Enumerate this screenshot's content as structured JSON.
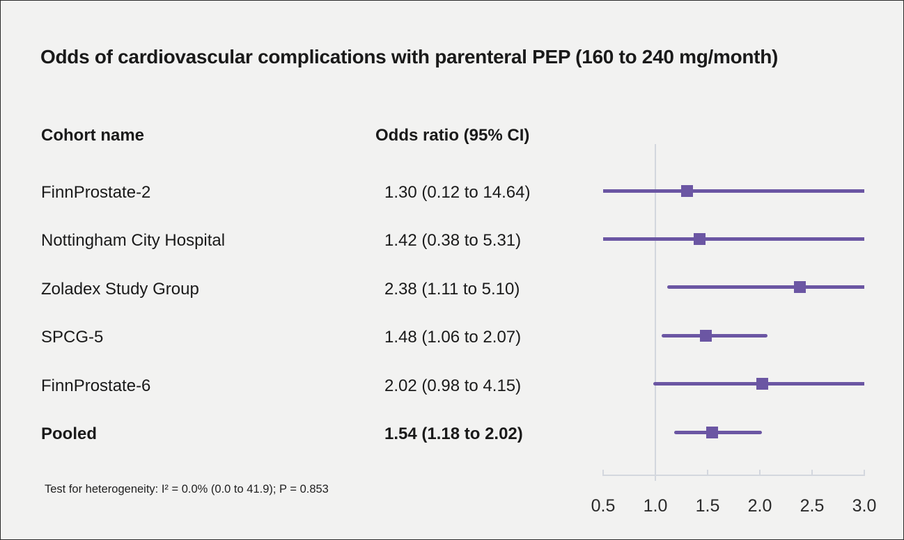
{
  "title": "Odds of cardiovascular complications with parenteral PEP (160 to 240 mg/month)",
  "columns": {
    "cohort": "Cohort name",
    "odds": "Odds ratio (95% CI)"
  },
  "footer": "Test for heterogeneity: I² = 0.0% (0.0 to 41.9); P = 0.853",
  "colors": {
    "background": "#f2f2f1",
    "accent_purple": "#6b56a3",
    "grid_gray": "#d3d7de",
    "text": "#1a1a1a",
    "tick_text": "#2b2b2b"
  },
  "chart_data": {
    "type": "scatter",
    "subtype": "forest",
    "title": "Odds of cardiovascular complications with parenteral PEP (160 to 240 mg/month)",
    "xlabel": "",
    "ylabel": "",
    "xlim": [
      0.5,
      3.0
    ],
    "reference_line": 1.0,
    "grid": false,
    "legend": "none",
    "x_ticks": [
      {
        "value": 0.5,
        "label": "0.5"
      },
      {
        "value": 1.0,
        "label": "1.0"
      },
      {
        "value": 1.5,
        "label": "1.5"
      },
      {
        "value": 2.0,
        "label": "2.0"
      },
      {
        "value": 2.5,
        "label": "2.5"
      },
      {
        "value": 3.0,
        "label": "3.0"
      }
    ],
    "rows": [
      {
        "label": "FinnProstate-2",
        "display": "1.30 (0.12 to 14.64)",
        "estimate": 1.3,
        "lower": 0.12,
        "upper": 14.64,
        "bold": false
      },
      {
        "label": "Nottingham City Hospital",
        "display": "1.42 (0.38 to 5.31)",
        "estimate": 1.42,
        "lower": 0.38,
        "upper": 5.31,
        "bold": false
      },
      {
        "label": "Zoladex Study Group",
        "display": "2.38 (1.11 to 5.10)",
        "estimate": 2.38,
        "lower": 1.11,
        "upper": 5.1,
        "bold": false
      },
      {
        "label": "SPCG-5",
        "display": "1.48 (1.06 to 2.07)",
        "estimate": 1.48,
        "lower": 1.06,
        "upper": 2.07,
        "bold": false
      },
      {
        "label": "FinnProstate-6",
        "display": "2.02 (0.98 to 4.15)",
        "estimate": 2.02,
        "lower": 0.98,
        "upper": 4.15,
        "bold": false
      },
      {
        "label": "Pooled",
        "display": "1.54 (1.18 to 2.02)",
        "estimate": 1.54,
        "lower": 1.18,
        "upper": 2.02,
        "bold": true
      }
    ]
  }
}
